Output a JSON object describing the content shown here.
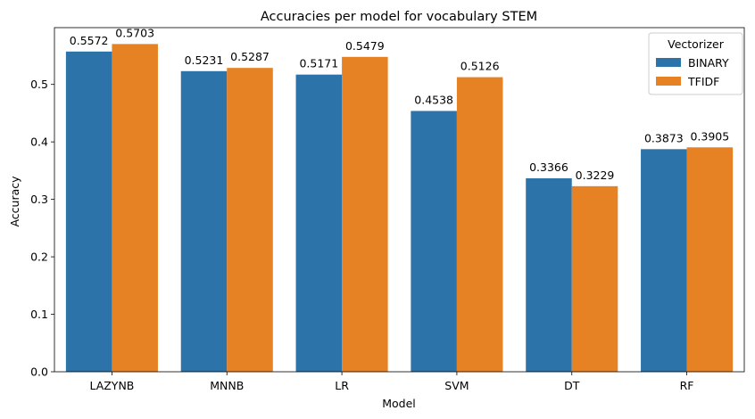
{
  "chart_data": {
    "type": "bar",
    "title": "Accuracies per model for vocabulary STEM",
    "xlabel": "Model",
    "ylabel": "Accuracy",
    "categories": [
      "LAZYNB",
      "MNNB",
      "LR",
      "SVM",
      "DT",
      "RF"
    ],
    "series": [
      {
        "name": "BINARY",
        "color": "#2c73aa",
        "values": [
          0.5572,
          0.5231,
          0.5171,
          0.4538,
          0.3366,
          0.3873
        ],
        "labels": [
          "0.5572",
          "0.5231",
          "0.5171",
          "0.4538",
          "0.3366",
          "0.3873"
        ]
      },
      {
        "name": "TFIDF",
        "color": "#e68124",
        "values": [
          0.5703,
          0.5287,
          0.5479,
          0.5126,
          0.3229,
          0.3905
        ],
        "labels": [
          "0.5703",
          "0.5287",
          "0.5479",
          "0.5126",
          "0.3229",
          "0.3905"
        ]
      }
    ],
    "ylim": [
      0,
      0.5988
    ],
    "yticks": [
      0.0,
      0.1,
      0.2,
      0.3,
      0.4,
      0.5
    ],
    "ytick_labels": [
      "0.0",
      "0.1",
      "0.2",
      "0.3",
      "0.4",
      "0.5"
    ],
    "grid": false,
    "legend": {
      "title": "Vectorizer",
      "placement": "top-right"
    }
  }
}
